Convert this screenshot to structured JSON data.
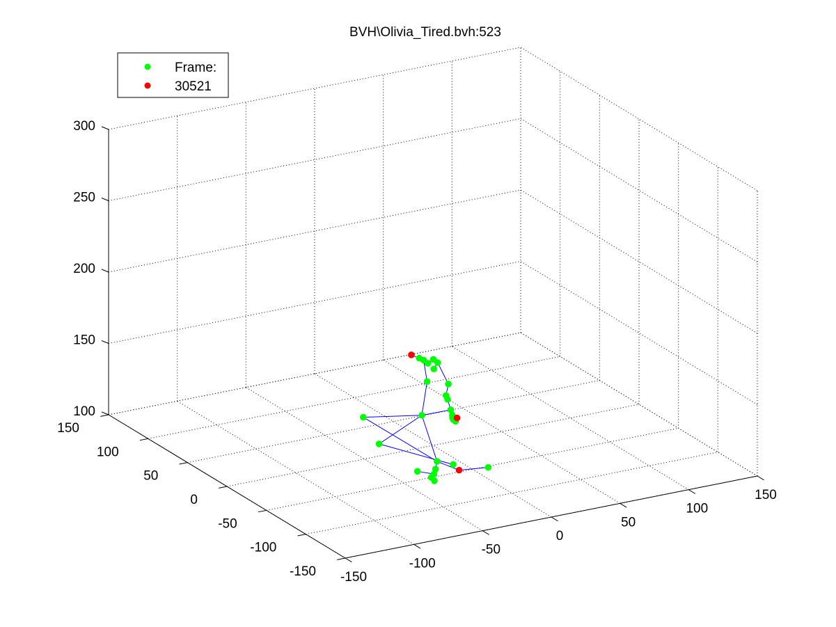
{
  "window": {
    "title": "BVH\\Olivia_Tired.bvh:523"
  },
  "chart_data": {
    "type": "scatter",
    "title": "BVH\\Olivia_Tired.bvh:523",
    "xlabel": "",
    "ylabel": "",
    "zlabel": "",
    "xlim": [
      -150,
      150
    ],
    "ylim": [
      -150,
      150
    ],
    "zlim": [
      100,
      300
    ],
    "x_ticks": [
      -150,
      -100,
      -50,
      0,
      50,
      100,
      150
    ],
    "y_ticks": [
      -150,
      -100,
      -50,
      0,
      50,
      100,
      150
    ],
    "z_ticks": [
      100,
      150,
      200,
      250,
      300
    ],
    "grid": true,
    "legend_position": "top-left",
    "legend": [
      {
        "label": "Frame:",
        "color": "#00ff00"
      },
      {
        "label": "30521",
        "color": "#ff0000"
      }
    ],
    "colors": {
      "joint": "#00ff00",
      "highlight": "#ff0000",
      "bone": "#0000ff"
    },
    "series": [
      {
        "name": "Frame:",
        "color": "#00ff00",
        "points": [
          [
            -10,
            0,
            163
          ],
          [
            -8,
            -2,
            162
          ],
          [
            -6,
            -4,
            160
          ],
          [
            -2,
            -4,
            162
          ],
          [
            0,
            -6,
            160
          ],
          [
            -4,
            -8,
            157
          ],
          [
            -10,
            -10,
            150
          ],
          [
            2,
            -16,
            148
          ],
          [
            -2,
            -20,
            142
          ],
          [
            -2,
            -22,
            140
          ],
          [
            -2,
            -26,
            134
          ],
          [
            -2,
            -28,
            131
          ],
          [
            -3,
            -30,
            130
          ],
          [
            -3,
            -31,
            129
          ],
          [
            -2,
            -32,
            128
          ],
          [
            -15,
            -12,
            128
          ],
          [
            -45,
            10,
            125
          ],
          [
            -45,
            -10,
            113
          ],
          [
            -20,
            -40,
            106
          ],
          [
            -24,
            -45,
            103
          ],
          [
            -30,
            -50,
            100
          ],
          [
            -30,
            -54,
            99
          ],
          [
            -28,
            -50,
            102
          ],
          [
            -14,
            -50,
            106
          ],
          [
            0,
            -70,
            108
          ],
          [
            -32,
            -36,
            100
          ]
        ]
      },
      {
        "name": "30521",
        "color": "#ff0000",
        "points": [
          [
            -10,
            10,
            162
          ],
          [
            -2,
            -34,
            131
          ],
          [
            -12,
            -54,
            103
          ]
        ]
      }
    ],
    "bones": [
      [
        0,
        1
      ],
      [
        1,
        2
      ],
      [
        2,
        3
      ],
      [
        3,
        4
      ],
      [
        4,
        5
      ],
      [
        0,
        26
      ],
      [
        1,
        6
      ],
      [
        6,
        15
      ],
      [
        4,
        7
      ],
      [
        7,
        8
      ],
      [
        8,
        9
      ],
      [
        9,
        10
      ],
      [
        10,
        11
      ],
      [
        11,
        12
      ],
      [
        12,
        13
      ],
      [
        13,
        14
      ],
      [
        14,
        27
      ],
      [
        15,
        16
      ],
      [
        15,
        17
      ],
      [
        15,
        18
      ],
      [
        16,
        18
      ],
      [
        17,
        23
      ],
      [
        18,
        19
      ],
      [
        19,
        20
      ],
      [
        20,
        21
      ],
      [
        21,
        22
      ],
      [
        18,
        28
      ],
      [
        28,
        24
      ],
      [
        22,
        25
      ],
      [
        15,
        10
      ]
    ]
  }
}
